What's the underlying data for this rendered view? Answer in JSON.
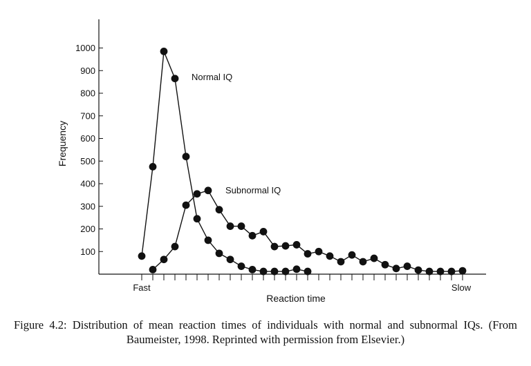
{
  "caption": "Figure 4.2: Distribution of mean reaction times of individuals with normal and subnormal IQs. (From Baumeister, 1998. Reprinted with permission from Elsevier.)",
  "chart_data": {
    "type": "line",
    "xlabel": "Reaction time",
    "ylabel": "Frequency",
    "x_ticks_count": 30,
    "x_end_labels": {
      "start": "Fast",
      "end": "Slow"
    },
    "ylim": [
      0,
      1100
    ],
    "yticks": [
      100,
      200,
      300,
      400,
      500,
      600,
      700,
      800,
      900,
      1000
    ],
    "grid": false,
    "series": [
      {
        "name": "Normal IQ",
        "x": [
          0,
          1,
          2,
          3,
          4,
          5,
          6,
          7,
          8,
          9,
          10,
          11,
          12,
          13,
          14,
          15
        ],
        "values": [
          80,
          475,
          985,
          865,
          520,
          245,
          150,
          92,
          65,
          35,
          20,
          12,
          12,
          12,
          22,
          12
        ]
      },
      {
        "name": "Subnormal IQ",
        "x": [
          1,
          2,
          3,
          4,
          5,
          6,
          7,
          8,
          9,
          10,
          11,
          12,
          13,
          14,
          15,
          16,
          17,
          18,
          19,
          20,
          21,
          22,
          23,
          24,
          25,
          26,
          27,
          28,
          29
        ],
        "values": [
          20,
          65,
          122,
          305,
          355,
          370,
          285,
          212,
          212,
          170,
          188,
          122,
          125,
          130,
          90,
          100,
          80,
          55,
          85,
          55,
          70,
          42,
          25,
          35,
          18,
          12,
          12,
          12,
          15
        ]
      }
    ]
  }
}
